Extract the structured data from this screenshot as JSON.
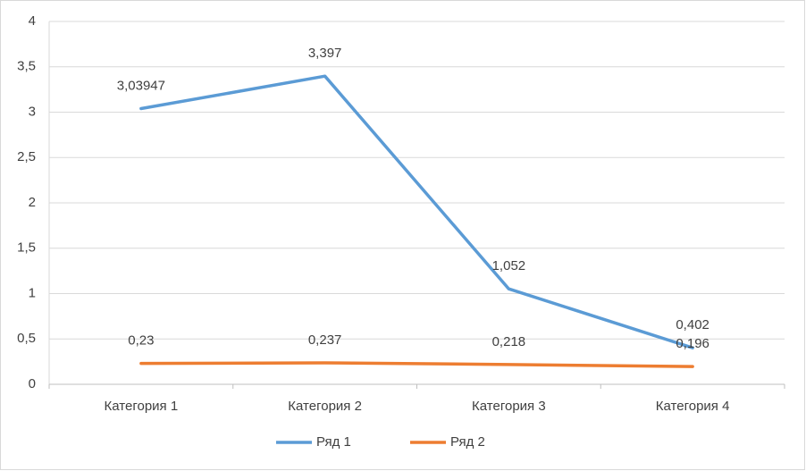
{
  "chart_data": {
    "type": "line",
    "categories": [
      "Категория 1",
      "Категория 2",
      "Категория 3",
      "Категория 4"
    ],
    "series": [
      {
        "name": "Ряд 1",
        "color": "#5b9bd5",
        "values": [
          3.03947,
          3.397,
          1.052,
          0.402
        ],
        "value_labels": [
          "3,03947",
          "3,397",
          "1,052",
          "0,402"
        ]
      },
      {
        "name": "Ряд 2",
        "color": "#ed7d31",
        "values": [
          0.23,
          0.237,
          0.218,
          0.196
        ],
        "value_labels": [
          "0,23",
          "0,237",
          "0,218",
          "0,196"
        ]
      }
    ],
    "ylim": [
      0,
      4
    ],
    "yticks": [
      0,
      {
        "value": 0.5,
        "label": "0,5"
      },
      1,
      {
        "value": 1.5,
        "label": "1,5"
      },
      2,
      {
        "value": 2.5,
        "label": "2,5"
      },
      3,
      {
        "value": 3.5,
        "label": "3,5"
      },
      4
    ],
    "grid": true,
    "legend": "bottom"
  }
}
